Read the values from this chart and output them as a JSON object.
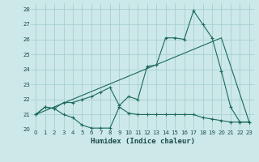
{
  "xlabel": "Humidex (Indice chaleur)",
  "bg_color": "#cce8e8",
  "line_color": "#1a6a5a",
  "grid_color": "#a8d0d0",
  "xlim": [
    -0.5,
    23.5
  ],
  "ylim": [
    20,
    28.4
  ],
  "xticks": [
    0,
    1,
    2,
    3,
    4,
    5,
    6,
    7,
    8,
    9,
    10,
    11,
    12,
    13,
    14,
    15,
    16,
    17,
    18,
    19,
    20,
    21,
    22,
    23
  ],
  "yticks": [
    20,
    21,
    22,
    23,
    24,
    25,
    26,
    27,
    28
  ],
  "line_bottom_x": [
    0,
    1,
    2,
    3,
    4,
    5,
    6,
    7,
    8,
    9,
    10,
    11,
    12,
    13,
    14,
    15,
    16,
    17,
    18,
    19,
    20,
    21,
    22,
    23
  ],
  "line_bottom_y": [
    21.0,
    21.5,
    21.4,
    21.0,
    20.8,
    20.3,
    20.1,
    20.1,
    20.1,
    21.5,
    21.1,
    21.0,
    21.0,
    21.0,
    21.0,
    21.0,
    21.0,
    21.0,
    20.8,
    20.7,
    20.6,
    20.5,
    20.5,
    20.5
  ],
  "line_main_x": [
    0,
    1,
    2,
    3,
    4,
    5,
    6,
    7,
    8,
    9,
    10,
    11,
    12,
    13,
    14,
    15,
    16,
    17,
    18,
    19,
    20,
    21,
    22,
    23
  ],
  "line_main_y": [
    21.0,
    21.5,
    21.4,
    21.8,
    21.8,
    22.0,
    22.2,
    22.5,
    22.8,
    21.6,
    22.2,
    22.0,
    24.2,
    24.3,
    26.1,
    26.1,
    26.0,
    27.9,
    27.0,
    26.1,
    23.9,
    21.5,
    20.5,
    20.5
  ],
  "line_trend_x": [
    0,
    20,
    23
  ],
  "line_trend_y": [
    21.0,
    26.1,
    20.5
  ]
}
